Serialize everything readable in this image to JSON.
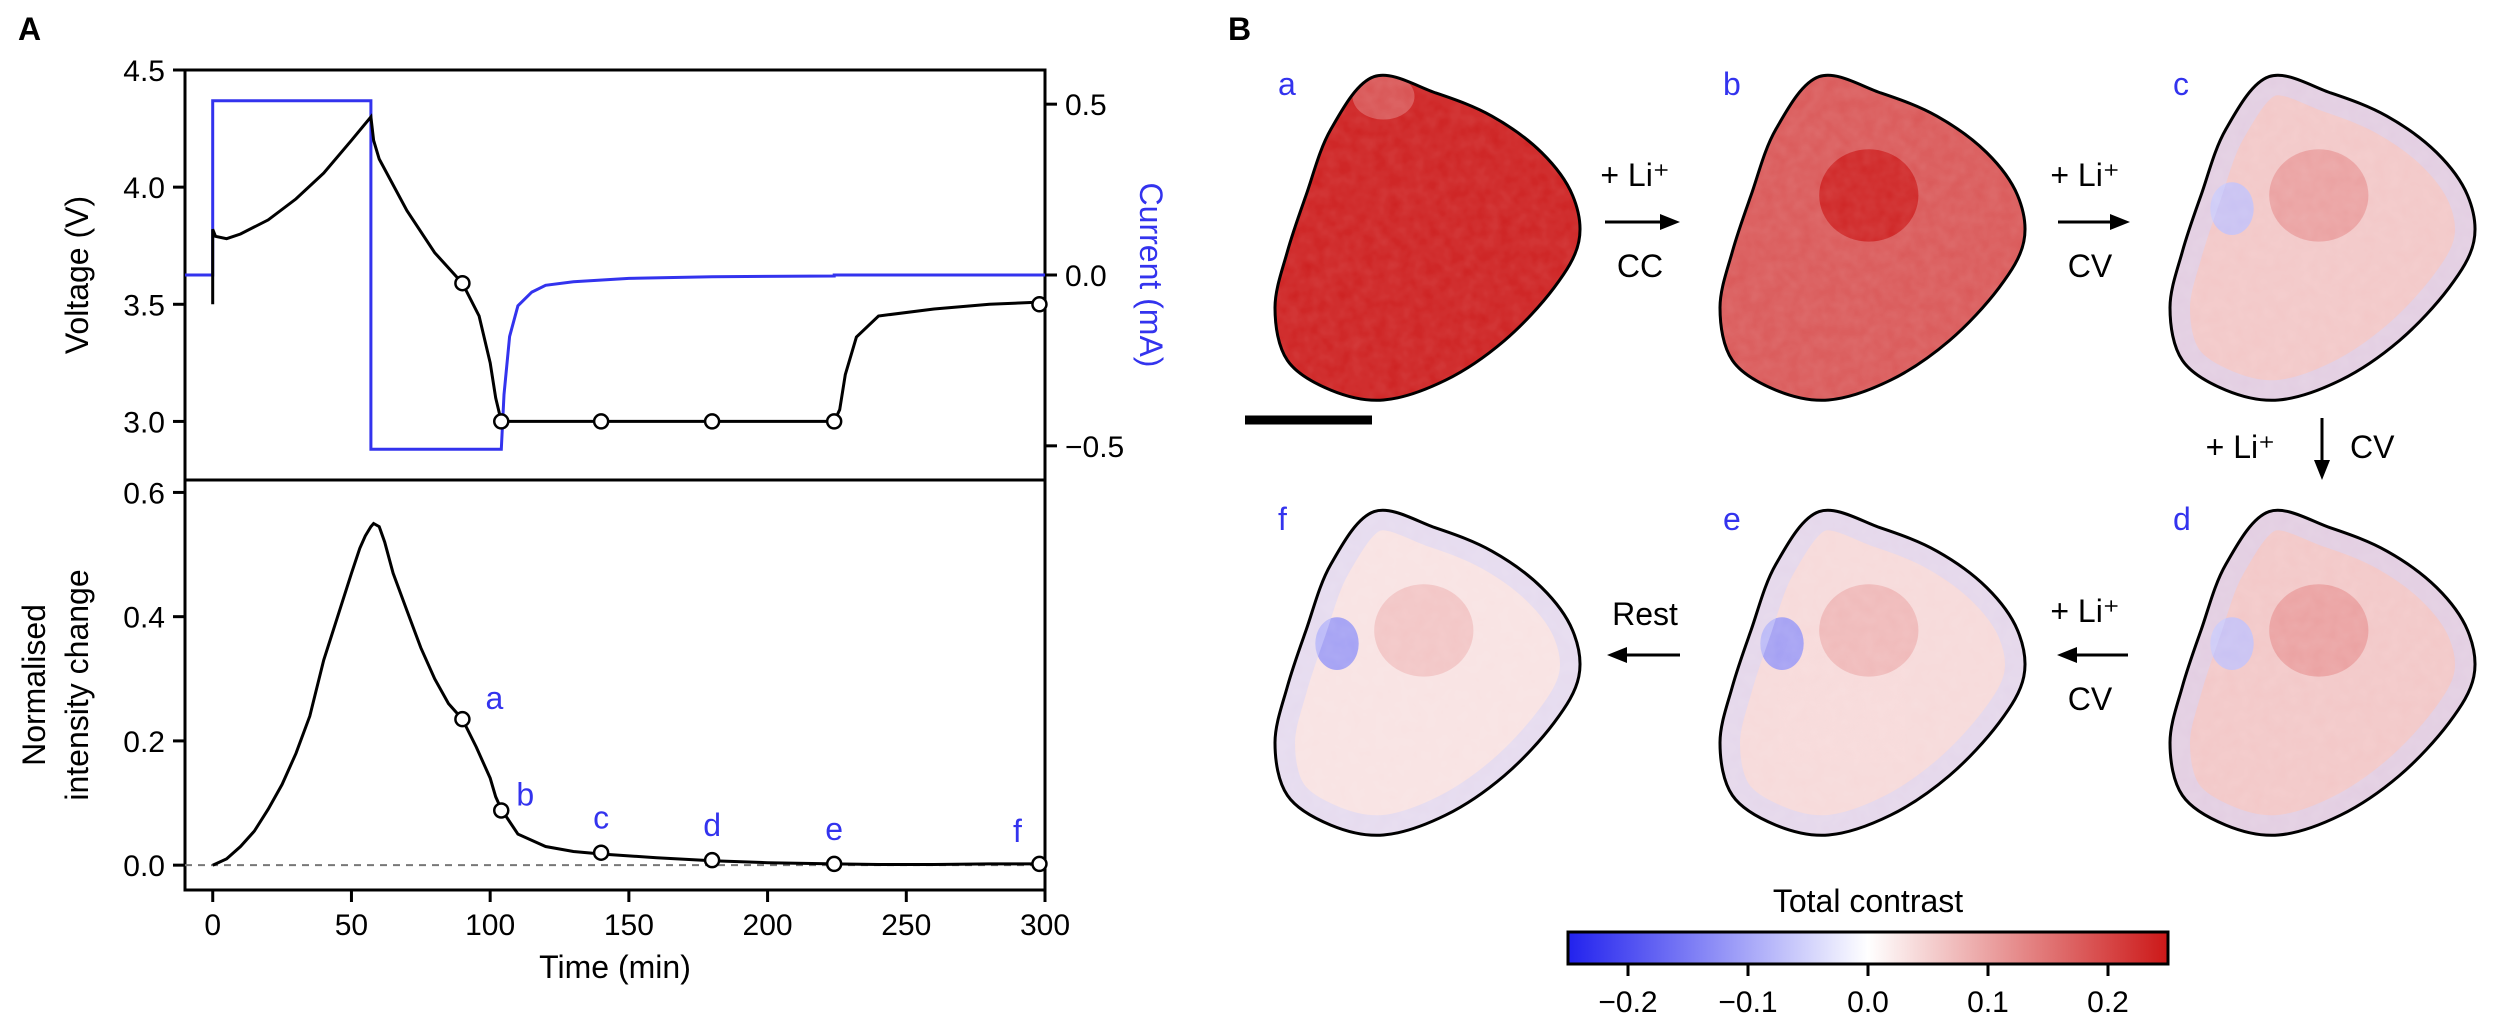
{
  "chart_data": [
    {
      "panel": "A",
      "type": "line",
      "position": "top",
      "xlim": [
        -10,
        300
      ],
      "xticks": [
        0,
        50,
        100,
        150,
        200,
        250,
        300
      ],
      "left_axis": {
        "label": "Voltage (V)",
        "lim": [
          2.75,
          4.5
        ],
        "ticks": [
          "3.0",
          "3.5",
          "4.0",
          "4.5"
        ]
      },
      "right_axis": {
        "label": "Current (mA)",
        "lim": [
          -0.6,
          0.6
        ],
        "ticks": [
          "0.5",
          "0.0",
          "−0.5"
        ]
      },
      "series": [
        {
          "axis": "left",
          "color": "#000000",
          "x": [
            0,
            0,
            1,
            5,
            10,
            20,
            30,
            40,
            50,
            57,
            58,
            60,
            70,
            80,
            90,
            96,
            100,
            102,
            104,
            130,
            160,
            200,
            224,
            226,
            228,
            232,
            240,
            260,
            280,
            300
          ],
          "y": [
            3.5,
            3.82,
            3.79,
            3.78,
            3.8,
            3.86,
            3.95,
            4.06,
            4.2,
            4.3,
            4.2,
            4.12,
            3.9,
            3.72,
            3.59,
            3.45,
            3.25,
            3.1,
            3.0,
            3.0,
            3.0,
            3.0,
            3.0,
            3.05,
            3.2,
            3.36,
            3.45,
            3.48,
            3.5,
            3.51
          ]
        },
        {
          "axis": "right",
          "color": "#3333ee",
          "x": [
            -10,
            0,
            0,
            57,
            57,
            104,
            104,
            105,
            107,
            110,
            115,
            120,
            130,
            150,
            180,
            224,
            224,
            300
          ],
          "y": [
            0,
            0,
            0.51,
            0.51,
            -0.51,
            -0.51,
            -0.51,
            -0.35,
            -0.18,
            -0.09,
            -0.05,
            -0.03,
            -0.02,
            -0.01,
            -0.005,
            -0.003,
            0,
            0
          ]
        }
      ],
      "markers": {
        "x": [
          90,
          104,
          140,
          180,
          224,
          298
        ],
        "y": [
          3.59,
          3.0,
          3.0,
          3.0,
          3.0,
          3.5
        ]
      }
    },
    {
      "panel": "A",
      "type": "line",
      "position": "bottom",
      "xlabel": "Time (min)",
      "ylabel": [
        "Normalised",
        "intensity change"
      ],
      "xlim": [
        -10,
        300
      ],
      "ylim": [
        -0.04,
        0.62
      ],
      "xticks": [
        0,
        50,
        100,
        150,
        200,
        250,
        300
      ],
      "yticks": [
        "0.0",
        "0.2",
        "0.4",
        "0.6"
      ],
      "series": [
        {
          "color": "#000000",
          "x": [
            0,
            5,
            10,
            15,
            20,
            25,
            30,
            35,
            40,
            45,
            50,
            53,
            55,
            57,
            58,
            60,
            62,
            65,
            70,
            75,
            80,
            85,
            90,
            95,
            100,
            102,
            104,
            110,
            120,
            130,
            140,
            160,
            180,
            200,
            224,
            240,
            260,
            280,
            298
          ],
          "y": [
            0,
            0.01,
            0.03,
            0.055,
            0.09,
            0.13,
            0.18,
            0.24,
            0.33,
            0.4,
            0.47,
            0.51,
            0.53,
            0.545,
            0.55,
            0.545,
            0.52,
            0.47,
            0.41,
            0.35,
            0.3,
            0.26,
            0.235,
            0.19,
            0.14,
            0.11,
            0.09,
            0.05,
            0.03,
            0.022,
            0.018,
            0.012,
            0.007,
            0.004,
            0.002,
            0.001,
            0.001,
            0.002,
            0.002
          ]
        }
      ],
      "baseline": 0,
      "markers": {
        "x": [
          90,
          104,
          140,
          180,
          224,
          298
        ],
        "y": [
          0.235,
          0.088,
          0.02,
          0.008,
          0.002,
          0.002
        ],
        "labels": [
          "a",
          "b",
          "c",
          "d",
          "e",
          "f"
        ]
      }
    },
    {
      "panel": "B",
      "type": "heatmap",
      "maps": [
        {
          "label": "a",
          "level": 0.24
        },
        {
          "label": "b",
          "level": 0.18
        },
        {
          "label": "c",
          "level": 0.06
        },
        {
          "label": "d",
          "level": 0.06
        },
        {
          "label": "e",
          "level": 0.04
        },
        {
          "label": "f",
          "level": 0.03
        }
      ],
      "transitions": [
        {
          "from": "a",
          "to": "b",
          "top": "+ Li⁺",
          "bottom": "CC"
        },
        {
          "from": "b",
          "to": "c",
          "top": "+ Li⁺",
          "bottom": "CV"
        },
        {
          "from": "c",
          "to": "d",
          "left": "+ Li⁺",
          "right": "CV"
        },
        {
          "from": "d",
          "to": "e",
          "top": "+ Li⁺",
          "bottom": "CV"
        },
        {
          "from": "e",
          "to": "f",
          "top": "Rest"
        }
      ],
      "colorbar": {
        "title": "Total contrast",
        "lim": [
          -0.25,
          0.25
        ],
        "ticks": [
          "−0.2",
          "−0.1",
          "0.0",
          "0.1",
          "0.2"
        ],
        "low": "#2222ee",
        "mid": "#ffffff",
        "high": "#cc1818"
      }
    }
  ],
  "panel_labels": [
    "A",
    "B"
  ]
}
